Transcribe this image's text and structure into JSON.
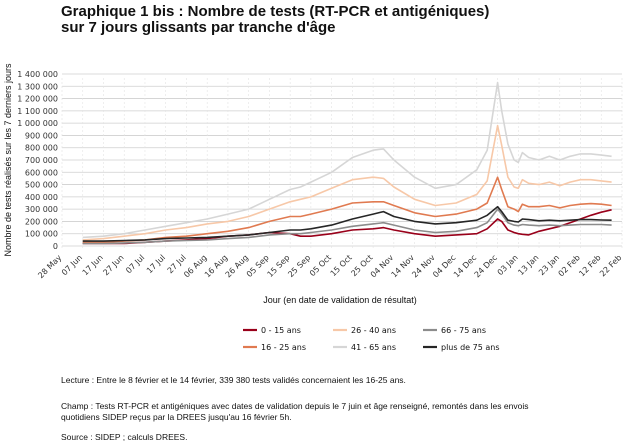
{
  "header": {
    "title_line1": "Graphique 1 bis : Nombre de tests (RT-PCR et antigéniques)",
    "title_line2": "sur 7 jours glissants par tranche d'âge"
  },
  "notes": {
    "lecture": "Lecture : Entre le 8 février et le 14 février, 339 380 tests validés concernaient les 16-25 ans.",
    "champ_line1": "Champ : Tests RT-PCR et antigéniques avec dates de validation depuis le 7 juin et âge renseigné, remontés dans les envois",
    "champ_line2": "quotidiens SIDEP reçus par la DREES jusqu'au 16 février 5h.",
    "source": "Source : SIDEP ; calculs DREES."
  },
  "chart_data": {
    "type": "line",
    "xlabel": "Jour (en date de validation de résultat)",
    "ylabel": "Nombre de tests réalisés sur les 7 derniers jours",
    "ylim": [
      0,
      1400000
    ],
    "y_ticks": [
      0,
      100000,
      200000,
      300000,
      400000,
      500000,
      600000,
      700000,
      800000,
      900000,
      1000000,
      1100000,
      1200000,
      1300000,
      1400000
    ],
    "y_tick_labels": [
      "0",
      "100 000",
      "200 000",
      "300 000",
      "400 000",
      "500 000",
      "600 000",
      "700 000",
      "800 000",
      "900 000",
      "1 000 000",
      "1 100 000",
      "1 200 000",
      "1 300 000",
      "1 400 000"
    ],
    "x_range_days": [
      0,
      270
    ],
    "x_tick_labels": [
      "28 May",
      "07 Jun",
      "17 Jun",
      "27 Jun",
      "07 Jul",
      "17 Jul",
      "27 Jul",
      "06 Aug",
      "16 Aug",
      "26 Aug",
      "05 Sep",
      "15 Sep",
      "25 Sep",
      "05 Oct",
      "15 Oct",
      "25 Oct",
      "04 Nov",
      "14 Nov",
      "24 Nov",
      "04 Dec",
      "14 Dec",
      "24 Dec",
      "03 Jan",
      "13 Jan",
      "23 Jan",
      "02 Feb",
      "12 Feb",
      "22 Feb"
    ],
    "x": [
      10,
      20,
      30,
      40,
      50,
      60,
      70,
      80,
      90,
      100,
      110,
      115,
      120,
      130,
      140,
      150,
      155,
      160,
      170,
      180,
      190,
      200,
      205,
      210,
      212,
      215,
      218,
      220,
      222,
      225,
      230,
      235,
      240,
      245,
      250,
      255,
      260,
      265
    ],
    "series": [
      {
        "name": "0 - 15 ans",
        "color": "#99001a",
        "values": [
          20000,
          20000,
          20000,
          30000,
          40000,
          50000,
          60000,
          80000,
          90000,
          110000,
          100000,
          80000,
          80000,
          100000,
          130000,
          140000,
          150000,
          130000,
          100000,
          80000,
          90000,
          100000,
          140000,
          220000,
          200000,
          130000,
          110000,
          100000,
          95000,
          90000,
          120000,
          140000,
          160000,
          190000,
          220000,
          250000,
          275000,
          295000
        ]
      },
      {
        "name": "16 - 25 ans",
        "color": "#e07a50",
        "values": [
          30000,
          30000,
          40000,
          50000,
          70000,
          80000,
          100000,
          120000,
          150000,
          200000,
          240000,
          240000,
          260000,
          300000,
          350000,
          360000,
          360000,
          330000,
          270000,
          240000,
          260000,
          300000,
          350000,
          560000,
          460000,
          320000,
          300000,
          280000,
          340000,
          320000,
          320000,
          330000,
          310000,
          330000,
          340000,
          345000,
          340000,
          330000
        ]
      },
      {
        "name": "26 - 40 ans",
        "color": "#f7c8a8",
        "values": [
          50000,
          60000,
          80000,
          100000,
          130000,
          150000,
          180000,
          200000,
          240000,
          300000,
          360000,
          380000,
          400000,
          470000,
          540000,
          560000,
          550000,
          480000,
          380000,
          330000,
          350000,
          420000,
          530000,
          980000,
          820000,
          560000,
          480000,
          470000,
          540000,
          510000,
          500000,
          520000,
          490000,
          520000,
          540000,
          540000,
          530000,
          520000
        ]
      },
      {
        "name": "41 - 65 ans",
        "color": "#d6d6d6",
        "values": [
          70000,
          80000,
          100000,
          130000,
          160000,
          190000,
          220000,
          260000,
          300000,
          380000,
          460000,
          480000,
          520000,
          600000,
          720000,
          780000,
          790000,
          700000,
          560000,
          470000,
          500000,
          620000,
          780000,
          1330000,
          1100000,
          830000,
          700000,
          680000,
          760000,
          720000,
          700000,
          730000,
          700000,
          730000,
          750000,
          750000,
          740000,
          730000
        ]
      },
      {
        "name": "66 - 75 ans",
        "color": "#8c8c8c",
        "values": [
          20000,
          20000,
          25000,
          30000,
          40000,
          45000,
          50000,
          60000,
          70000,
          90000,
          100000,
          100000,
          110000,
          130000,
          160000,
          180000,
          190000,
          170000,
          130000,
          110000,
          120000,
          150000,
          190000,
          300000,
          260000,
          190000,
          170000,
          165000,
          175000,
          170000,
          165000,
          170000,
          165000,
          170000,
          175000,
          175000,
          175000,
          170000
        ]
      },
      {
        "name": "plus de 75 ans",
        "color": "#262626",
        "values": [
          40000,
          40000,
          45000,
          50000,
          60000,
          65000,
          70000,
          80000,
          90000,
          110000,
          130000,
          130000,
          140000,
          170000,
          220000,
          260000,
          280000,
          240000,
          200000,
          180000,
          190000,
          210000,
          250000,
          320000,
          280000,
          210000,
          200000,
          195000,
          220000,
          215000,
          205000,
          210000,
          205000,
          210000,
          215000,
          215000,
          212000,
          210000
        ]
      }
    ],
    "legend_position": "bottom"
  }
}
